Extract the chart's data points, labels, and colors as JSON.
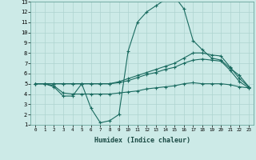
{
  "xlabel": "Humidex (Indice chaleur)",
  "background_color": "#cceae7",
  "grid_color": "#aed4d0",
  "line_color": "#1a6b60",
  "x_min": 0,
  "x_max": 23,
  "y_min": 1,
  "y_max": 13,
  "line1_x": [
    0,
    1,
    2,
    3,
    4,
    5,
    6,
    7,
    8,
    9,
    10,
    11,
    12,
    13,
    14,
    15,
    16,
    17,
    18,
    19,
    20,
    21,
    22,
    23
  ],
  "line1_y": [
    5.0,
    5.0,
    4.7,
    3.8,
    3.8,
    5.0,
    2.6,
    1.2,
    1.4,
    2.0,
    8.2,
    11.0,
    12.0,
    12.6,
    13.2,
    13.5,
    12.3,
    9.2,
    8.3,
    7.5,
    7.3,
    6.5,
    5.8,
    4.7
  ],
  "line2_x": [
    0,
    1,
    2,
    3,
    4,
    5,
    6,
    7,
    8,
    9,
    10,
    11,
    12,
    13,
    14,
    15,
    16,
    17,
    18,
    19,
    20,
    21,
    22,
    23
  ],
  "line2_y": [
    5.0,
    5.0,
    5.0,
    5.0,
    5.0,
    5.0,
    5.0,
    5.0,
    5.0,
    5.2,
    5.5,
    5.8,
    6.1,
    6.4,
    6.7,
    7.0,
    7.5,
    8.0,
    8.0,
    7.8,
    7.7,
    6.6,
    5.5,
    4.7
  ],
  "line3_x": [
    0,
    1,
    2,
    3,
    4,
    5,
    6,
    7,
    8,
    9,
    10,
    11,
    12,
    13,
    14,
    15,
    16,
    17,
    18,
    19,
    20,
    21,
    22,
    23
  ],
  "line3_y": [
    5.0,
    5.0,
    5.0,
    5.0,
    5.0,
    5.0,
    5.0,
    5.0,
    5.0,
    5.1,
    5.3,
    5.6,
    5.9,
    6.1,
    6.4,
    6.6,
    7.0,
    7.3,
    7.4,
    7.3,
    7.2,
    6.3,
    5.2,
    4.6
  ],
  "line4_x": [
    0,
    1,
    2,
    3,
    4,
    5,
    6,
    7,
    8,
    9,
    10,
    11,
    12,
    13,
    14,
    15,
    16,
    17,
    18,
    19,
    20,
    21,
    22,
    23
  ],
  "line4_y": [
    5.0,
    5.0,
    4.8,
    4.1,
    4.0,
    4.0,
    4.0,
    4.0,
    4.0,
    4.1,
    4.2,
    4.3,
    4.5,
    4.6,
    4.7,
    4.8,
    5.0,
    5.1,
    5.0,
    5.0,
    5.0,
    4.9,
    4.7,
    4.6
  ]
}
